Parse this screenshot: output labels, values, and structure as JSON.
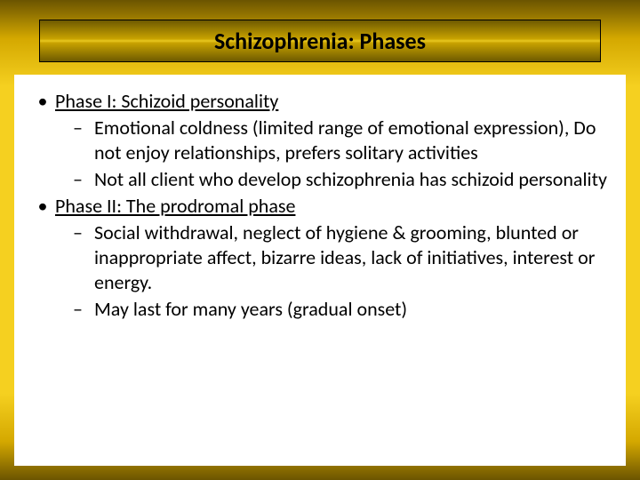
{
  "slide": {
    "title": "Schizophrenia: Phases",
    "title_fontsize": 26,
    "title_fontweight": "bold",
    "body_fontsize": 22,
    "body_line_height": 28,
    "background_gradient_colors": [
      "#6b5400",
      "#d4a800",
      "#f5d020",
      "#f5d020",
      "#d4a800",
      "#6b5400"
    ],
    "title_box_gradient_colors": [
      "#6e5a00",
      "#c8a200",
      "#e8c820",
      "#c8a200",
      "#6e5a00"
    ],
    "content_background": "#ffffff",
    "text_color": "#000000",
    "bullets": [
      {
        "level": 1,
        "marker": "•",
        "text": "Phase I: Schizoid personality",
        "underline": true
      },
      {
        "level": 2,
        "marker": "–",
        "text": "Emotional coldness (limited range of emotional expression), Do not enjoy relationships, prefers solitary activities",
        "underline": false
      },
      {
        "level": 2,
        "marker": "–",
        "text": "Not all client who develop schizophrenia has schizoid personality",
        "underline": false
      },
      {
        "level": 1,
        "marker": "•",
        "text": "Phase II: The prodromal phase",
        "underline": true
      },
      {
        "level": 2,
        "marker": "–",
        "text": "Social withdrawal, neglect of hygiene & grooming, blunted or inappropriate affect, bizarre ideas, lack of initiatives, interest  or energy.",
        "underline": false
      },
      {
        "level": 2,
        "marker": "–",
        "text": "May last for many years (gradual onset)",
        "underline": false
      }
    ]
  }
}
